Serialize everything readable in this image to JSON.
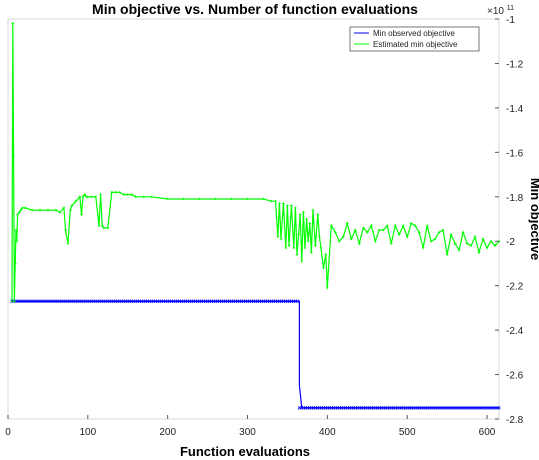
{
  "chart_data": {
    "type": "line",
    "title": "Min objective vs. Number of function evaluations",
    "xlabel": "Function evaluations",
    "ylabel": "Min objective",
    "exponent_label": "×10",
    "exponent_power": "11",
    "xlim": [
      0,
      615
    ],
    "ylim": [
      -2.8,
      -1.0
    ],
    "y_axis_side": "right",
    "xticks": [
      0,
      100,
      200,
      300,
      400,
      500,
      600
    ],
    "yticks": [
      -1,
      -1.2,
      -1.4,
      -1.6,
      -1.8,
      -2,
      -2.2,
      -2.4,
      -2.6,
      -2.8
    ],
    "grid": false,
    "legend_position": "top-right",
    "series": [
      {
        "name": "Min observed objective",
        "color": "#0000ff",
        "marker": "x",
        "x": [
          5,
          365,
          365,
          368,
          615
        ],
        "y": [
          -2.27,
          -2.27,
          -2.65,
          -2.75,
          -2.75
        ]
      },
      {
        "name": "Estimated min objective",
        "color": "#00ff00",
        "marker": "x",
        "x": [
          5,
          6,
          7,
          8,
          9,
          10,
          11,
          12,
          14,
          16,
          18,
          22,
          30,
          40,
          50,
          60,
          65,
          70,
          72,
          75,
          78,
          80,
          85,
          90,
          92,
          94,
          96,
          98,
          100,
          105,
          110,
          114,
          116,
          118,
          120,
          125,
          130,
          135,
          140,
          145,
          150,
          155,
          160,
          170,
          180,
          200,
          220,
          240,
          260,
          280,
          300,
          320,
          330,
          335,
          338,
          340,
          342,
          345,
          348,
          350,
          352,
          355,
          358,
          360,
          362,
          364,
          366,
          368,
          370,
          372,
          374,
          376,
          378,
          380,
          382,
          385,
          388,
          390,
          392,
          395,
          398,
          400,
          405,
          410,
          415,
          420,
          425,
          430,
          435,
          440,
          445,
          450,
          455,
          460,
          465,
          470,
          475,
          480,
          485,
          490,
          495,
          500,
          505,
          510,
          515,
          520,
          525,
          530,
          535,
          540,
          545,
          550,
          555,
          560,
          565,
          570,
          575,
          580,
          585,
          590,
          595,
          600,
          605,
          610,
          615
        ],
        "y": [
          -2.27,
          -1.02,
          -1.62,
          -2.27,
          -2.1,
          -1.95,
          -2.0,
          -1.88,
          -1.87,
          -1.86,
          -1.85,
          -1.85,
          -1.86,
          -1.86,
          -1.86,
          -1.86,
          -1.87,
          -1.85,
          -1.95,
          -2.01,
          -1.86,
          -1.84,
          -1.82,
          -1.8,
          -1.88,
          -1.8,
          -1.79,
          -1.8,
          -1.8,
          -1.8,
          -1.8,
          -1.93,
          -1.79,
          -1.93,
          -1.94,
          -1.94,
          -1.78,
          -1.78,
          -1.78,
          -1.79,
          -1.79,
          -1.79,
          -1.8,
          -1.8,
          -1.8,
          -1.81,
          -1.81,
          -1.81,
          -1.81,
          -1.81,
          -1.81,
          -1.81,
          -1.82,
          -1.82,
          -1.98,
          -1.83,
          -1.99,
          -1.83,
          -2.03,
          -1.84,
          -2.02,
          -1.84,
          -2.03,
          -1.85,
          -2.06,
          -1.97,
          -1.88,
          -2.09,
          -1.87,
          -2.03,
          -1.9,
          -2.0,
          -1.92,
          -2.05,
          -1.86,
          -2.02,
          -1.88,
          -1.98,
          -2.03,
          -2.12,
          -2.06,
          -2.21,
          -1.93,
          -1.96,
          -2.0,
          -1.98,
          -1.92,
          -1.99,
          -1.95,
          -2.01,
          -1.94,
          -1.96,
          -1.93,
          -2.0,
          -1.95,
          -1.95,
          -1.93,
          -2.01,
          -1.93,
          -1.97,
          -1.93,
          -1.98,
          -1.92,
          -1.93,
          -1.96,
          -2.03,
          -1.93,
          -2.0,
          -1.99,
          -1.96,
          -1.95,
          -2.06,
          -1.97,
          -2.01,
          -2.04,
          -1.96,
          -2.01,
          -2.02,
          -1.98,
          -2.05,
          -1.99,
          -2.03,
          -2.0,
          -2.02,
          -2.0
        ]
      }
    ]
  }
}
